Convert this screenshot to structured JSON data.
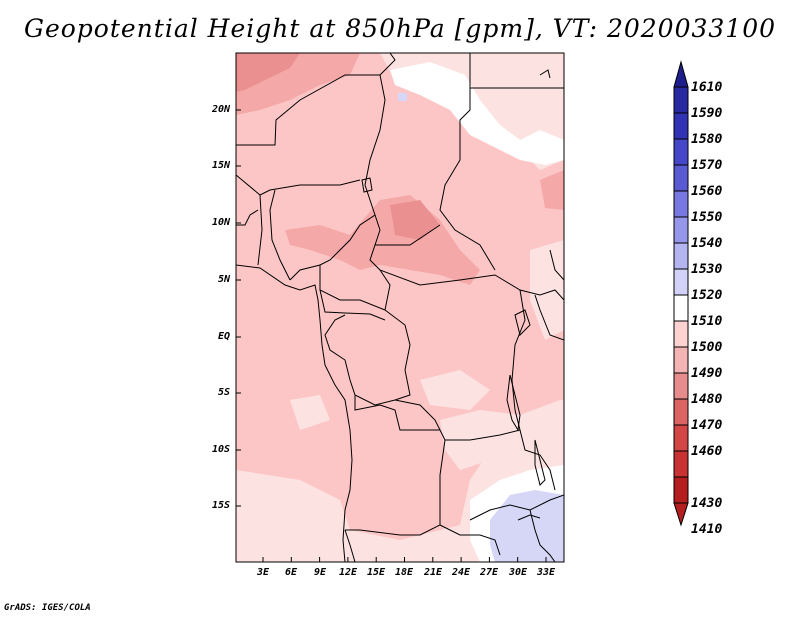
{
  "title": "Geopotential Height at 850hPa [gpm], VT: 2020033100",
  "footer": "GrADS: IGES/COLA",
  "axes": {
    "lat_labels": [
      "20N",
      "15N",
      "10N",
      "5N",
      "EQ",
      "5S",
      "10S",
      "15S"
    ],
    "lon_labels": [
      "3E",
      "6E",
      "9E",
      "12E",
      "15E",
      "18E",
      "21E",
      "24E",
      "27E",
      "30E",
      "33E"
    ]
  },
  "colorbar": {
    "levels": [
      "1610",
      "1590",
      "1580",
      "1570",
      "1560",
      "1550",
      "1540",
      "1530",
      "1520",
      "1510",
      "1500",
      "1490",
      "1480",
      "1470",
      "1460",
      "1430",
      "1410"
    ],
    "colors": [
      "#1e1e8c",
      "#2828a0",
      "#3232b4",
      "#4646c8",
      "#5a5ad2",
      "#7878e0",
      "#9696eb",
      "#b4b4f0",
      "#d2d2f8",
      "#ffffff",
      "#ffd2d2",
      "#f5b4b4",
      "#e68c8c",
      "#dc6464",
      "#d24646",
      "#c83232",
      "#b41e1e"
    ]
  },
  "colors": {
    "field_base": "#fcc6c6",
    "field_light": "#fde2e2",
    "field_dark": "#f5a8a8",
    "field_darker": "#ea9090",
    "field_blue": "#d6d6f7",
    "border_line": "#000000"
  }
}
